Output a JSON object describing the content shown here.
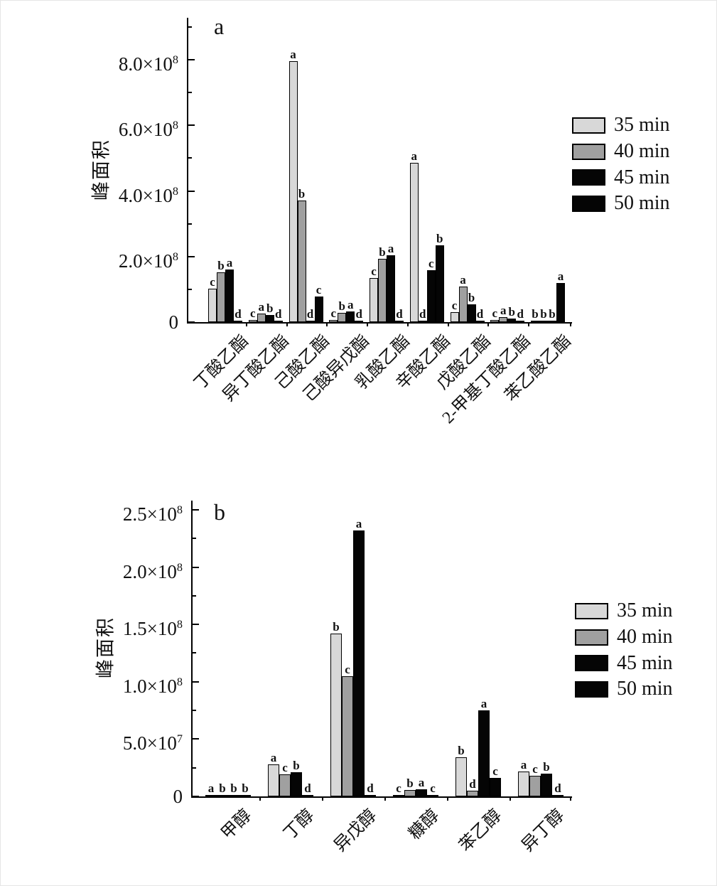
{
  "figure": {
    "background": "#ffffff",
    "axis_color": "#000000"
  },
  "chart_data": [
    {
      "type": "bar",
      "panel": "a",
      "ylabel": "峰面积",
      "unit_label": "×10⁸",
      "ylim": [
        0,
        9.28
      ],
      "grid": false,
      "legend_position": "right-of-plot",
      "categories": [
        "丁酸乙酯",
        "异丁酸乙酯",
        "己酸乙酯",
        "己酸异戊酯",
        "乳酸乙酯",
        "辛酸乙酯",
        "戊酸乙酯",
        "2-甲基丁酸乙酯",
        "苯乙酸乙酯"
      ],
      "series": [
        {
          "name": "35 min",
          "color": "#d8d8d8",
          "values": [
            1.02,
            0.06,
            7.95,
            0.07,
            1.35,
            4.85,
            0.3,
            0.06,
            0.02
          ],
          "letters": [
            "c",
            "c",
            "a",
            "c",
            "c",
            "a",
            "c",
            "c",
            "b"
          ]
        },
        {
          "name": "40 min",
          "color": "#a0a0a0",
          "values": [
            1.52,
            0.26,
            3.7,
            0.28,
            1.93,
            0.05,
            1.09,
            0.16,
            0.03
          ],
          "letters": [
            "b",
            "a",
            "b",
            "b",
            "b",
            "d",
            "a",
            "a",
            "b"
          ]
        },
        {
          "name": "45 min",
          "color": "#050505",
          "values": [
            1.6,
            0.22,
            0.03,
            0.32,
            2.04,
            1.58,
            0.54,
            0.1,
            0.03
          ],
          "letters": [
            "a",
            "b",
            "d",
            "a",
            "a",
            "c",
            "b",
            "b",
            "b"
          ]
        },
        {
          "name": "50 min",
          "color": "#050505",
          "values": [
            0.02,
            0.02,
            0.78,
            0.02,
            0.03,
            2.35,
            0.03,
            0.02,
            1.2
          ],
          "letters": [
            "d",
            "d",
            "c",
            "d",
            "d",
            "b",
            "d",
            "d",
            "a"
          ]
        }
      ],
      "yticks": {
        "major": [
          {
            "v": 0,
            "label": "0",
            "sup": ""
          },
          {
            "v": 2,
            "label": "2.0×10",
            "sup": "8"
          },
          {
            "v": 4,
            "label": "4.0×10",
            "sup": "8"
          },
          {
            "v": 6,
            "label": "6.0×10",
            "sup": "8"
          },
          {
            "v": 8,
            "label": "8.0×10",
            "sup": "8"
          }
        ],
        "minor": [
          1,
          3,
          5,
          7,
          9
        ]
      }
    },
    {
      "type": "bar",
      "panel": "b",
      "ylabel": "峰面积",
      "unit_label": "×10⁷",
      "ylim": [
        0,
        25.8
      ],
      "grid": false,
      "legend_position": "right-of-plot",
      "categories": [
        "甲醇",
        "丁醇",
        "异戊醇",
        "糠醇",
        "苯乙醇",
        "异丁醇"
      ],
      "series": [
        {
          "name": "35 min",
          "color": "#d8d8d8",
          "values": [
            0.15,
            2.8,
            14.2,
            0.05,
            3.4,
            2.2
          ],
          "letters": [
            "a",
            "a",
            "b",
            "c",
            "b",
            "a"
          ]
        },
        {
          "name": "40 min",
          "color": "#a0a0a0",
          "values": [
            0.05,
            1.9,
            10.5,
            0.55,
            0.5,
            1.8
          ],
          "letters": [
            "b",
            "c",
            "c",
            "b",
            "d",
            "c"
          ]
        },
        {
          "name": "45 min",
          "color": "#050505",
          "values": [
            0.05,
            2.1,
            23.2,
            0.65,
            7.5,
            2.0
          ],
          "letters": [
            "b",
            "b",
            "a",
            "a",
            "a",
            "b"
          ]
        },
        {
          "name": "50 min",
          "color": "#050505",
          "values": [
            0.05,
            0.05,
            0.05,
            0.05,
            1.6,
            0.05
          ],
          "letters": [
            "b",
            "d",
            "d",
            "c",
            "c",
            "d"
          ]
        }
      ],
      "yticks": {
        "major": [
          {
            "v": 0,
            "label": "0",
            "sup": ""
          },
          {
            "v": 5,
            "label": "5.0×10",
            "sup": "7"
          },
          {
            "v": 10,
            "label": "1.0×10",
            "sup": "8"
          },
          {
            "v": 15,
            "label": "1.5×10",
            "sup": "8"
          },
          {
            "v": 20,
            "label": "2.0×10",
            "sup": "8"
          },
          {
            "v": 25,
            "label": "2.5×10",
            "sup": "8"
          }
        ],
        "minor": [
          2.5,
          7.5,
          12.5,
          17.5,
          22.5
        ]
      }
    }
  ]
}
